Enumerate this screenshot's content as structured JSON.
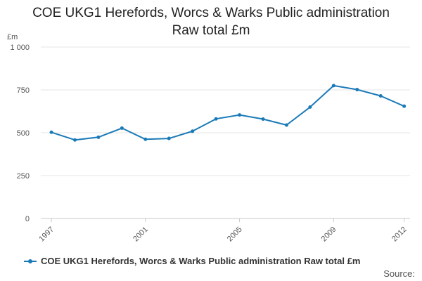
{
  "title_line1": "COE UKG1 Herefords, Worcs & Warks Public administration",
  "title_line2": "Raw total £m",
  "y_unit": "£m",
  "source_label": "Source:",
  "chart_data": {
    "type": "line",
    "title": "COE UKG1 Herefords, Worcs & Warks Public administration Raw total £m",
    "ylabel": "£m",
    "xlabel": "",
    "ylim": [
      0,
      1000
    ],
    "yticks": [
      0,
      250,
      500,
      750,
      1000
    ],
    "ytick_labels": [
      "0",
      "250",
      "500",
      "750",
      "1 000"
    ],
    "xticks": [
      1997,
      2001,
      2005,
      2009,
      2012
    ],
    "grid": true,
    "legend_position": "bottom",
    "series": [
      {
        "name": "COE UKG1 Herefords, Worcs & Warks Public administration Raw total £m",
        "color": "#1a7ab8",
        "x": [
          1997,
          1998,
          1999,
          2000,
          2001,
          2002,
          2003,
          2004,
          2005,
          2006,
          2007,
          2008,
          2009,
          2010,
          2011,
          2012
        ],
        "values": [
          503,
          458,
          474,
          527,
          462,
          467,
          509,
          581,
          604,
          580,
          545,
          650,
          775,
          752,
          715,
          655
        ]
      }
    ]
  }
}
